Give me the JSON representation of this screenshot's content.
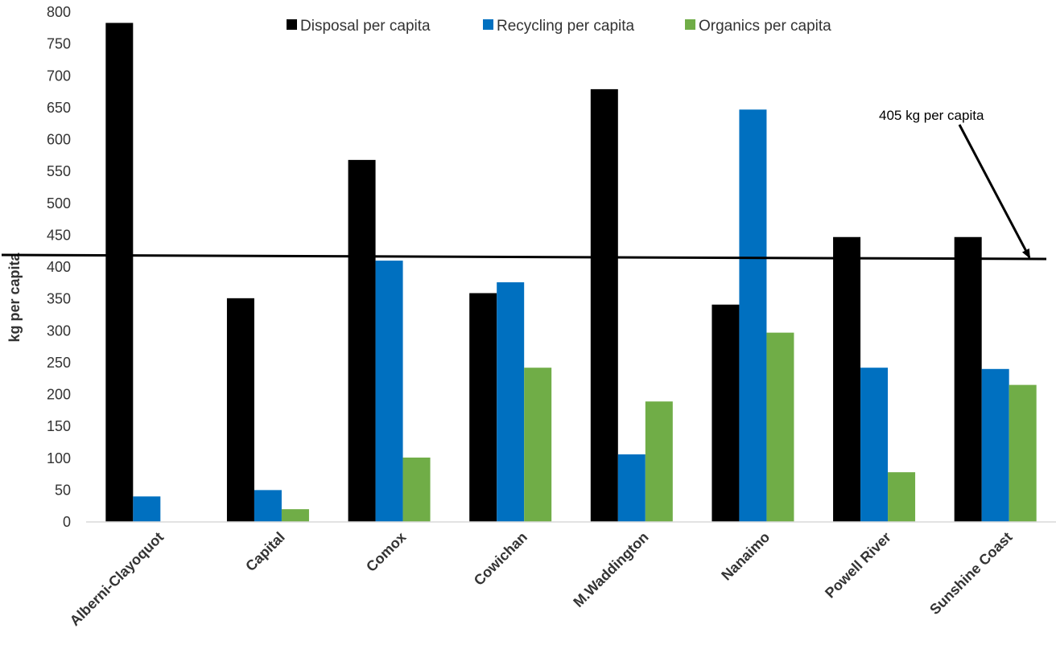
{
  "chart_data": {
    "type": "bar",
    "title": "",
    "xlabel": "",
    "ylabel": "kg per capita",
    "ylim": [
      0,
      800
    ],
    "yticks": [
      0,
      50,
      100,
      150,
      200,
      250,
      300,
      350,
      400,
      450,
      500,
      550,
      600,
      650,
      700,
      750,
      800
    ],
    "grid": false,
    "legend_position": "top",
    "categories": [
      "Alberni-Clayoquot",
      "Capital",
      "Comox",
      "Cowichan",
      "M.Waddington",
      "Nanaimo",
      "Powell River",
      "Sunshine Coast"
    ],
    "series": [
      {
        "name": "Disposal per capita",
        "color": "#000000",
        "values": [
          783,
          351,
          568,
          359,
          679,
          341,
          447,
          447
        ]
      },
      {
        "name": "Recycling per capita",
        "color": "#0070C0",
        "values": [
          40,
          50,
          410,
          376,
          106,
          647,
          242,
          240
        ]
      },
      {
        "name": "Organics per capita",
        "color": "#70AD47",
        "values": [
          0,
          20,
          101,
          242,
          189,
          297,
          78,
          215
        ]
      }
    ],
    "reference_line": {
      "value": 405
    },
    "annotations": [
      {
        "text": "405 kg per capita",
        "points_to": "reference-line"
      }
    ]
  }
}
